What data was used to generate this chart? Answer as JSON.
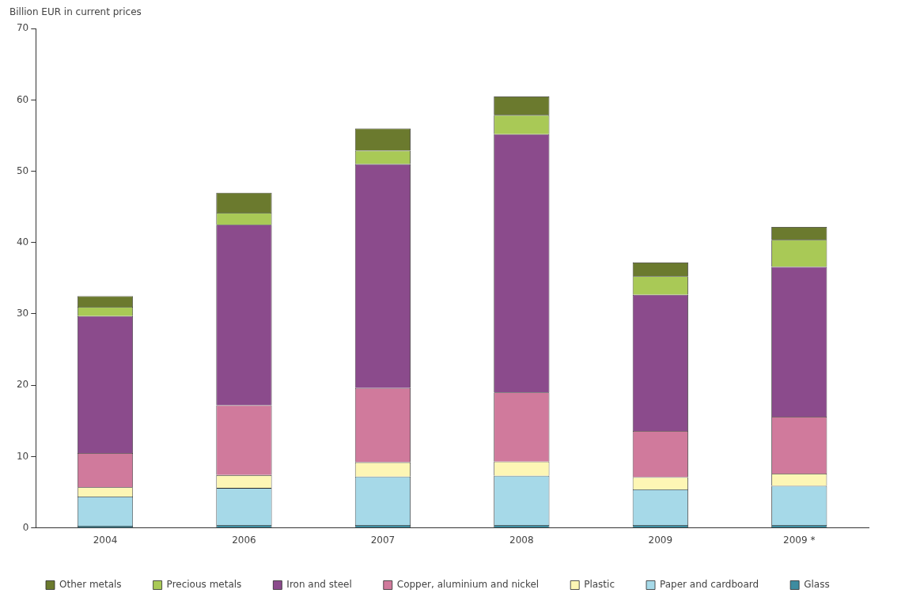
{
  "chart_data": {
    "type": "bar",
    "stacked": true,
    "ylabel": "Billion EUR in current prices",
    "categories": [
      "2004",
      "2006",
      "2007",
      "2008",
      "2009",
      "2009 *"
    ],
    "series": [
      {
        "name": "Glass",
        "color": "#3e8ca0",
        "values": [
          0.3,
          0.4,
          0.4,
          0.4,
          0.4,
          0.4
        ]
      },
      {
        "name": "Paper and cardboard",
        "color": "#a6d9e8",
        "values": [
          4.1,
          5.2,
          6.8,
          6.9,
          5.0,
          5.5
        ]
      },
      {
        "name": "Plastic",
        "color": "#fdf6b5",
        "values": [
          1.3,
          1.8,
          2.0,
          2.0,
          1.7,
          1.7
        ]
      },
      {
        "name": "Copper, aluminium and nickel",
        "color": "#d07a9c",
        "values": [
          4.8,
          9.8,
          10.4,
          9.7,
          6.5,
          8.0
        ]
      },
      {
        "name": "Iron and steel",
        "color": "#8b4b8c",
        "values": [
          19.2,
          25.3,
          31.4,
          36.2,
          19.1,
          21.0
        ]
      },
      {
        "name": "Precious metals",
        "color": "#a9c956",
        "values": [
          1.3,
          1.7,
          1.9,
          2.7,
          2.6,
          3.8
        ]
      },
      {
        "name": "Other metals",
        "color": "#6b7a2e",
        "values": [
          1.5,
          2.8,
          3.1,
          2.6,
          1.9,
          1.8
        ]
      }
    ],
    "ylim": [
      0,
      70
    ],
    "yticks": [
      0,
      10,
      20,
      30,
      40,
      50,
      60,
      70
    ],
    "grid": false,
    "legend": "bottom"
  }
}
